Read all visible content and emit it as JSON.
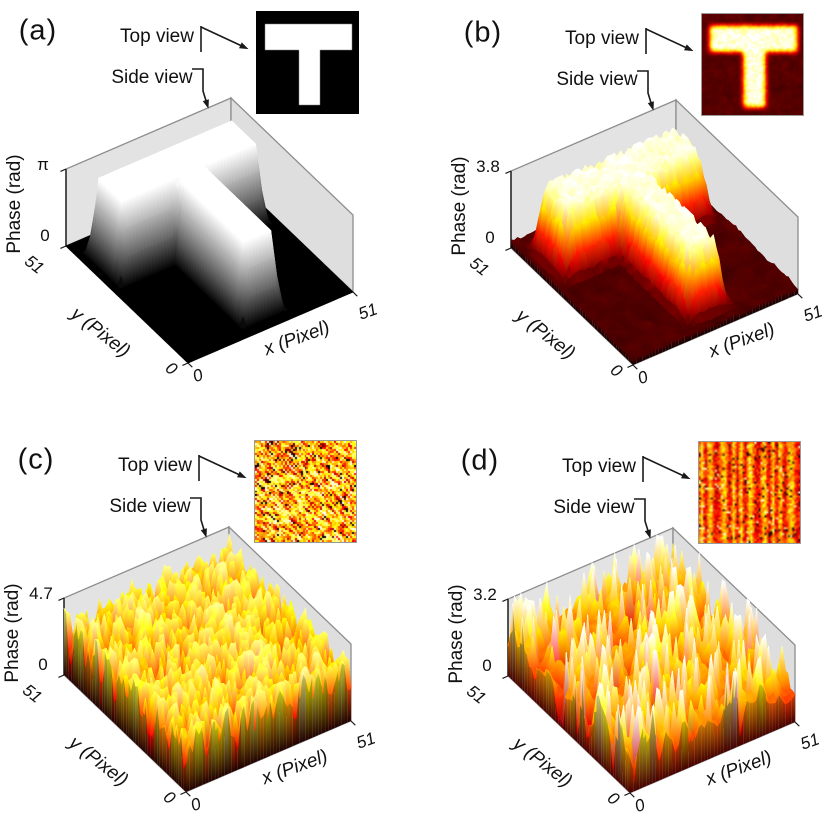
{
  "labels": {
    "top_view": "Top view",
    "side_view": "Side view",
    "z_axis": "Phase (rad)",
    "x_axis": "x (Pixel)",
    "y_axis": "y (Pixel)",
    "x_zero_tick": "0",
    "x_max_tick": "51",
    "y_zero_tick": "0",
    "y_max_tick": "51",
    "z_zero_tick": "0"
  },
  "panels": [
    {
      "id": "a",
      "label": "(a)",
      "z_max_tick": "π"
    },
    {
      "id": "b",
      "label": "(b)",
      "z_max_tick": "3.8"
    },
    {
      "id": "c",
      "label": "(c)",
      "z_max_tick": "4.7"
    },
    {
      "id": "d",
      "label": "(d)",
      "z_max_tick": "3.2"
    }
  ],
  "colors": {
    "background": "#ffffff",
    "wall": "#e3e3e3",
    "wall_right": "#dedede",
    "floor": "#d8d8d8",
    "edge": "#8d8d8d",
    "axis": "#1a1a1a",
    "text": "#111111"
  },
  "chart_data": [
    {
      "panel": "a",
      "type": "surface",
      "description": "Ideal binary T-shaped phase pattern: phase = π on the T region, 0 on the background",
      "xlabel": "x (Pixel)",
      "ylabel": "y (Pixel)",
      "zlabel": "Phase (rad)",
      "xlim": [
        0,
        51
      ],
      "ylim": [
        0,
        51
      ],
      "zlim": [
        0,
        3.1416
      ],
      "xticks": [
        0,
        51
      ],
      "yticks": [
        0,
        51
      ],
      "zticks": [
        "0",
        "π"
      ],
      "colormap": "grayscale",
      "color_range": [
        0,
        1
      ],
      "grid_n": 52,
      "surface": {
        "kind": "t_plateau",
        "plateau": 3.1416,
        "background": 0,
        "bar_x": [
          4,
          47
        ],
        "bar_y": [
          33,
          45
        ],
        "stem_x": [
          21,
          31
        ],
        "stem_y": [
          5,
          33
        ],
        "edge_smooth_passes": 1,
        "floor_noise": 0,
        "top_noise": 0,
        "seed": 11
      },
      "inset": {
        "kind": "t_binary",
        "fg": "#ffffff",
        "bg": "#000000"
      }
    },
    {
      "panel": "b",
      "type": "surface",
      "description": "Measured T-shaped phase pattern with noise; plateau near 3.8 rad over a noisy dark-red background",
      "xlabel": "x (Pixel)",
      "ylabel": "y (Pixel)",
      "zlabel": "Phase (rad)",
      "xlim": [
        0,
        51
      ],
      "ylim": [
        0,
        51
      ],
      "zlim": [
        0,
        3.8
      ],
      "xticks": [
        0,
        51
      ],
      "yticks": [
        0,
        51
      ],
      "zticks": [
        "0",
        "3.8"
      ],
      "colormap": "hot",
      "color_range": [
        0.05,
        1
      ],
      "grid_n": 52,
      "surface": {
        "kind": "t_plateau",
        "plateau": 3.45,
        "background": 0.25,
        "bar_x": [
          4,
          47
        ],
        "bar_y": [
          33,
          45
        ],
        "stem_x": [
          21,
          31
        ],
        "stem_y": [
          5,
          33
        ],
        "edge_smooth_passes": 2,
        "floor_noise": 0.35,
        "top_noise": 0.55,
        "seed": 23
      },
      "inset": {
        "kind": "t_noisy"
      }
    },
    {
      "panel": "c",
      "type": "surface",
      "description": "Random speckle phase pattern, dense sharp spikes up to 4.7 rad",
      "xlabel": "x (Pixel)",
      "ylabel": "y (Pixel)",
      "zlabel": "Phase (rad)",
      "xlim": [
        0,
        51
      ],
      "ylim": [
        0,
        51
      ],
      "zlim": [
        0,
        4.7
      ],
      "xticks": [
        0,
        51
      ],
      "yticks": [
        0,
        51
      ],
      "zticks": [
        "0",
        "4.7"
      ],
      "colormap": "hot",
      "color_range": [
        0.1,
        1
      ],
      "grid_n": 52,
      "surface": {
        "kind": "random_spikes",
        "pit_power": 1.6,
        "base": 0.05,
        "amp": 0.92,
        "seed": 37
      },
      "inset": {
        "kind": "speckle"
      }
    },
    {
      "panel": "d",
      "type": "surface",
      "description": "Noisy phase pattern with vertical streaks and conical peaks up to 3.2 rad",
      "xlabel": "x (Pixel)",
      "ylabel": "y (Pixel)",
      "zlabel": "Phase (rad)",
      "xlim": [
        0,
        51
      ],
      "ylim": [
        0,
        51
      ],
      "zlim": [
        0,
        3.2
      ],
      "xticks": [
        0,
        51
      ],
      "yticks": [
        0,
        51
      ],
      "zticks": [
        "0",
        "3.2"
      ],
      "colormap": "hot",
      "color_range": [
        0.22,
        1
      ],
      "grid_n": 52,
      "surface": {
        "kind": "ridged_noise",
        "base": 0.24,
        "smooth_amp": 0.3,
        "stripe_amp": 0.12,
        "stripe_freq": 1.05,
        "spike_prob": 0.1,
        "spike_amp": 0.5,
        "pit_prob": 0.045,
        "seed": 53
      },
      "inset": {
        "kind": "striped_noise"
      }
    }
  ]
}
